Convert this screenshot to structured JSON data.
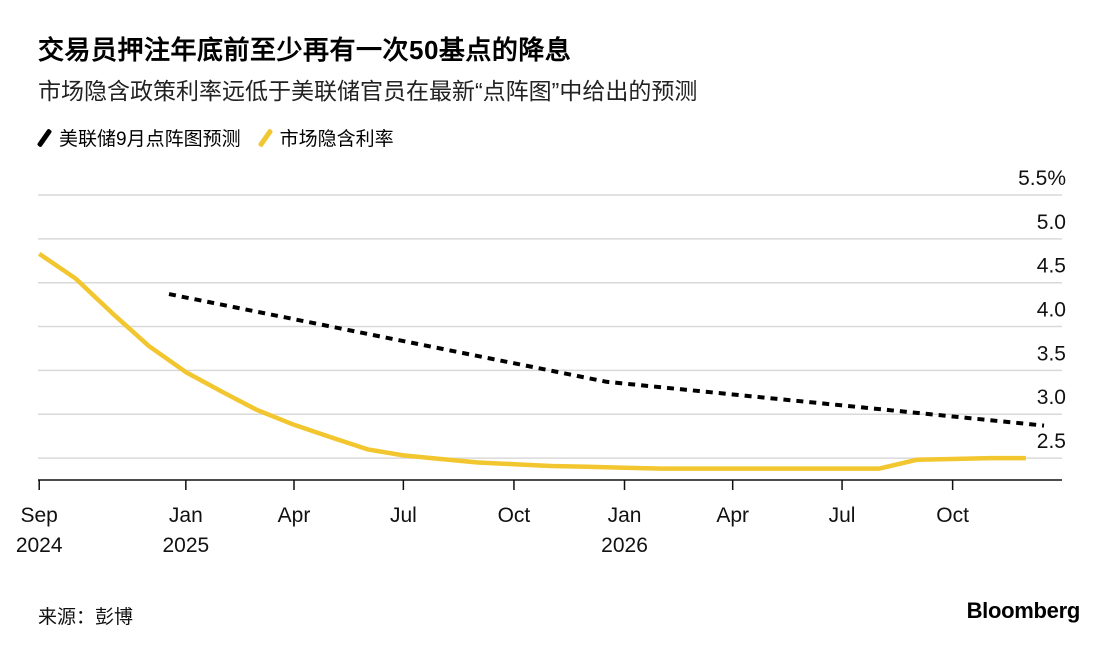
{
  "title": "交易员押注年底前至少再有一次50基点的降息",
  "subtitle": "市场隐含政策利率远低于美联储官员在最新“点阵图”中给出的预测",
  "legend": [
    {
      "label": "美联储9月点阵图预测",
      "color": "#000000",
      "style": "dashed"
    },
    {
      "label": "市场隐含利率",
      "color": "#f2c62f",
      "style": "solid"
    }
  ],
  "source": "来源：彭博",
  "brand": "Bloomberg",
  "chart_data": {
    "type": "line",
    "title": "交易员押注年底前至少再有一次50基点的降息",
    "subtitle": "市场隐含政策利率远低于美联储官员在最新“点阵图”中给出的预测",
    "xlabel": "",
    "ylabel": "",
    "x_axis": {
      "type": "date",
      "range": [
        "2024-08-31",
        "2026-12-31"
      ],
      "ticks": [
        {
          "date": "2024-09-01",
          "label": "Sep",
          "year": "2024"
        },
        {
          "date": "2025-01-01",
          "label": "Jan",
          "year": "2025"
        },
        {
          "date": "2025-04-01",
          "label": "Apr",
          "year": ""
        },
        {
          "date": "2025-07-01",
          "label": "Jul",
          "year": ""
        },
        {
          "date": "2025-10-01",
          "label": "Oct",
          "year": ""
        },
        {
          "date": "2026-01-01",
          "label": "Jan",
          "year": "2026"
        },
        {
          "date": "2026-04-01",
          "label": "Apr",
          "year": ""
        },
        {
          "date": "2026-07-01",
          "label": "Jul",
          "year": ""
        },
        {
          "date": "2026-10-01",
          "label": "Oct",
          "year": ""
        }
      ]
    },
    "y_axis": {
      "position": "right",
      "range": [
        2.25,
        5.5
      ],
      "ticks": [
        {
          "value": 2.5,
          "label": "2.5"
        },
        {
          "value": 3.0,
          "label": "3.0"
        },
        {
          "value": 3.5,
          "label": "3.5"
        },
        {
          "value": 4.0,
          "label": "4.0"
        },
        {
          "value": 4.5,
          "label": "4.5"
        },
        {
          "value": 5.0,
          "label": "5.0"
        },
        {
          "value": 5.5,
          "label": "5.5%"
        }
      ]
    },
    "grid": true,
    "legend_position": "top-left",
    "series": [
      {
        "name": "美联储9月点阵图预测",
        "color": "#000000",
        "style": "dashed",
        "points": [
          {
            "x": "2024-12-18",
            "y": 4.37
          },
          {
            "x": "2025-12-17",
            "y": 3.37
          },
          {
            "x": "2026-12-16",
            "y": 2.87
          }
        ]
      },
      {
        "name": "市场隐含利率",
        "color": "#f2c62f",
        "style": "solid",
        "points": [
          {
            "x": "2024-09-01",
            "y": 4.83
          },
          {
            "x": "2024-10-01",
            "y": 4.55
          },
          {
            "x": "2024-11-01",
            "y": 4.15
          },
          {
            "x": "2024-12-01",
            "y": 3.78
          },
          {
            "x": "2025-01-01",
            "y": 3.48
          },
          {
            "x": "2025-02-01",
            "y": 3.25
          },
          {
            "x": "2025-03-01",
            "y": 3.05
          },
          {
            "x": "2025-04-01",
            "y": 2.88
          },
          {
            "x": "2025-05-01",
            "y": 2.74
          },
          {
            "x": "2025-06-01",
            "y": 2.6
          },
          {
            "x": "2025-07-01",
            "y": 2.53
          },
          {
            "x": "2025-08-01",
            "y": 2.49
          },
          {
            "x": "2025-09-01",
            "y": 2.45
          },
          {
            "x": "2025-10-01",
            "y": 2.43
          },
          {
            "x": "2025-11-01",
            "y": 2.41
          },
          {
            "x": "2025-12-01",
            "y": 2.4
          },
          {
            "x": "2026-01-01",
            "y": 2.39
          },
          {
            "x": "2026-02-01",
            "y": 2.38
          },
          {
            "x": "2026-03-01",
            "y": 2.38
          },
          {
            "x": "2026-04-01",
            "y": 2.38
          },
          {
            "x": "2026-05-01",
            "y": 2.38
          },
          {
            "x": "2026-06-01",
            "y": 2.38
          },
          {
            "x": "2026-07-01",
            "y": 2.38
          },
          {
            "x": "2026-08-01",
            "y": 2.38
          },
          {
            "x": "2026-09-01",
            "y": 2.48
          },
          {
            "x": "2026-10-01",
            "y": 2.49
          },
          {
            "x": "2026-11-01",
            "y": 2.5
          },
          {
            "x": "2026-12-01",
            "y": 2.5
          }
        ]
      }
    ]
  }
}
